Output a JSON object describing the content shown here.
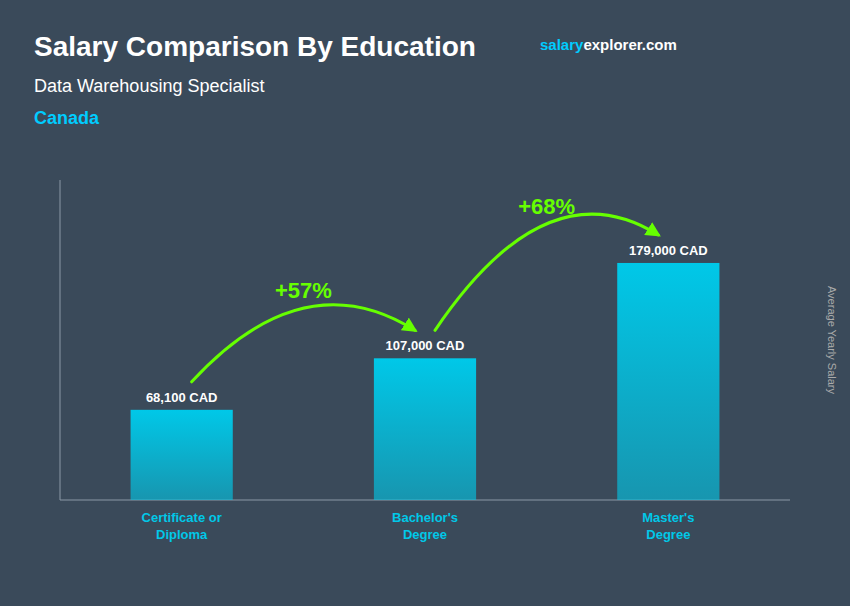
{
  "chart_data": {
    "type": "bar",
    "title": "Salary Comparison By Education",
    "subtitle": "Data Warehousing Specialist",
    "ylabel": "Average Yearly Salary",
    "categories": [
      "Certificate or\nDiploma",
      "Bachelor's\nDegree",
      "Master's\nDegree"
    ],
    "values": [
      68100,
      107000,
      179000
    ],
    "value_labels": [
      "68,100 CAD",
      "107,000 CAD",
      "179,000 CAD"
    ],
    "data_labels": true,
    "color": "#00c8e8",
    "ylim": [
      0,
      241650
    ],
    "tick_labels": "x",
    "grid": false,
    "watermark": [
      {
        "text": "salary",
        "color": "#00ccff"
      },
      {
        "text": "explorer"
      },
      {
        "text": ".com"
      }
    ],
    "annotations": [
      {
        "text": "Canada",
        "color": "#00ccff"
      },
      {
        "text": "+57%",
        "between": [
          0,
          1
        ],
        "color": "#66ff00"
      },
      {
        "text": "+68%",
        "between": [
          1,
          2
        ],
        "color": "#66ff00"
      }
    ]
  }
}
